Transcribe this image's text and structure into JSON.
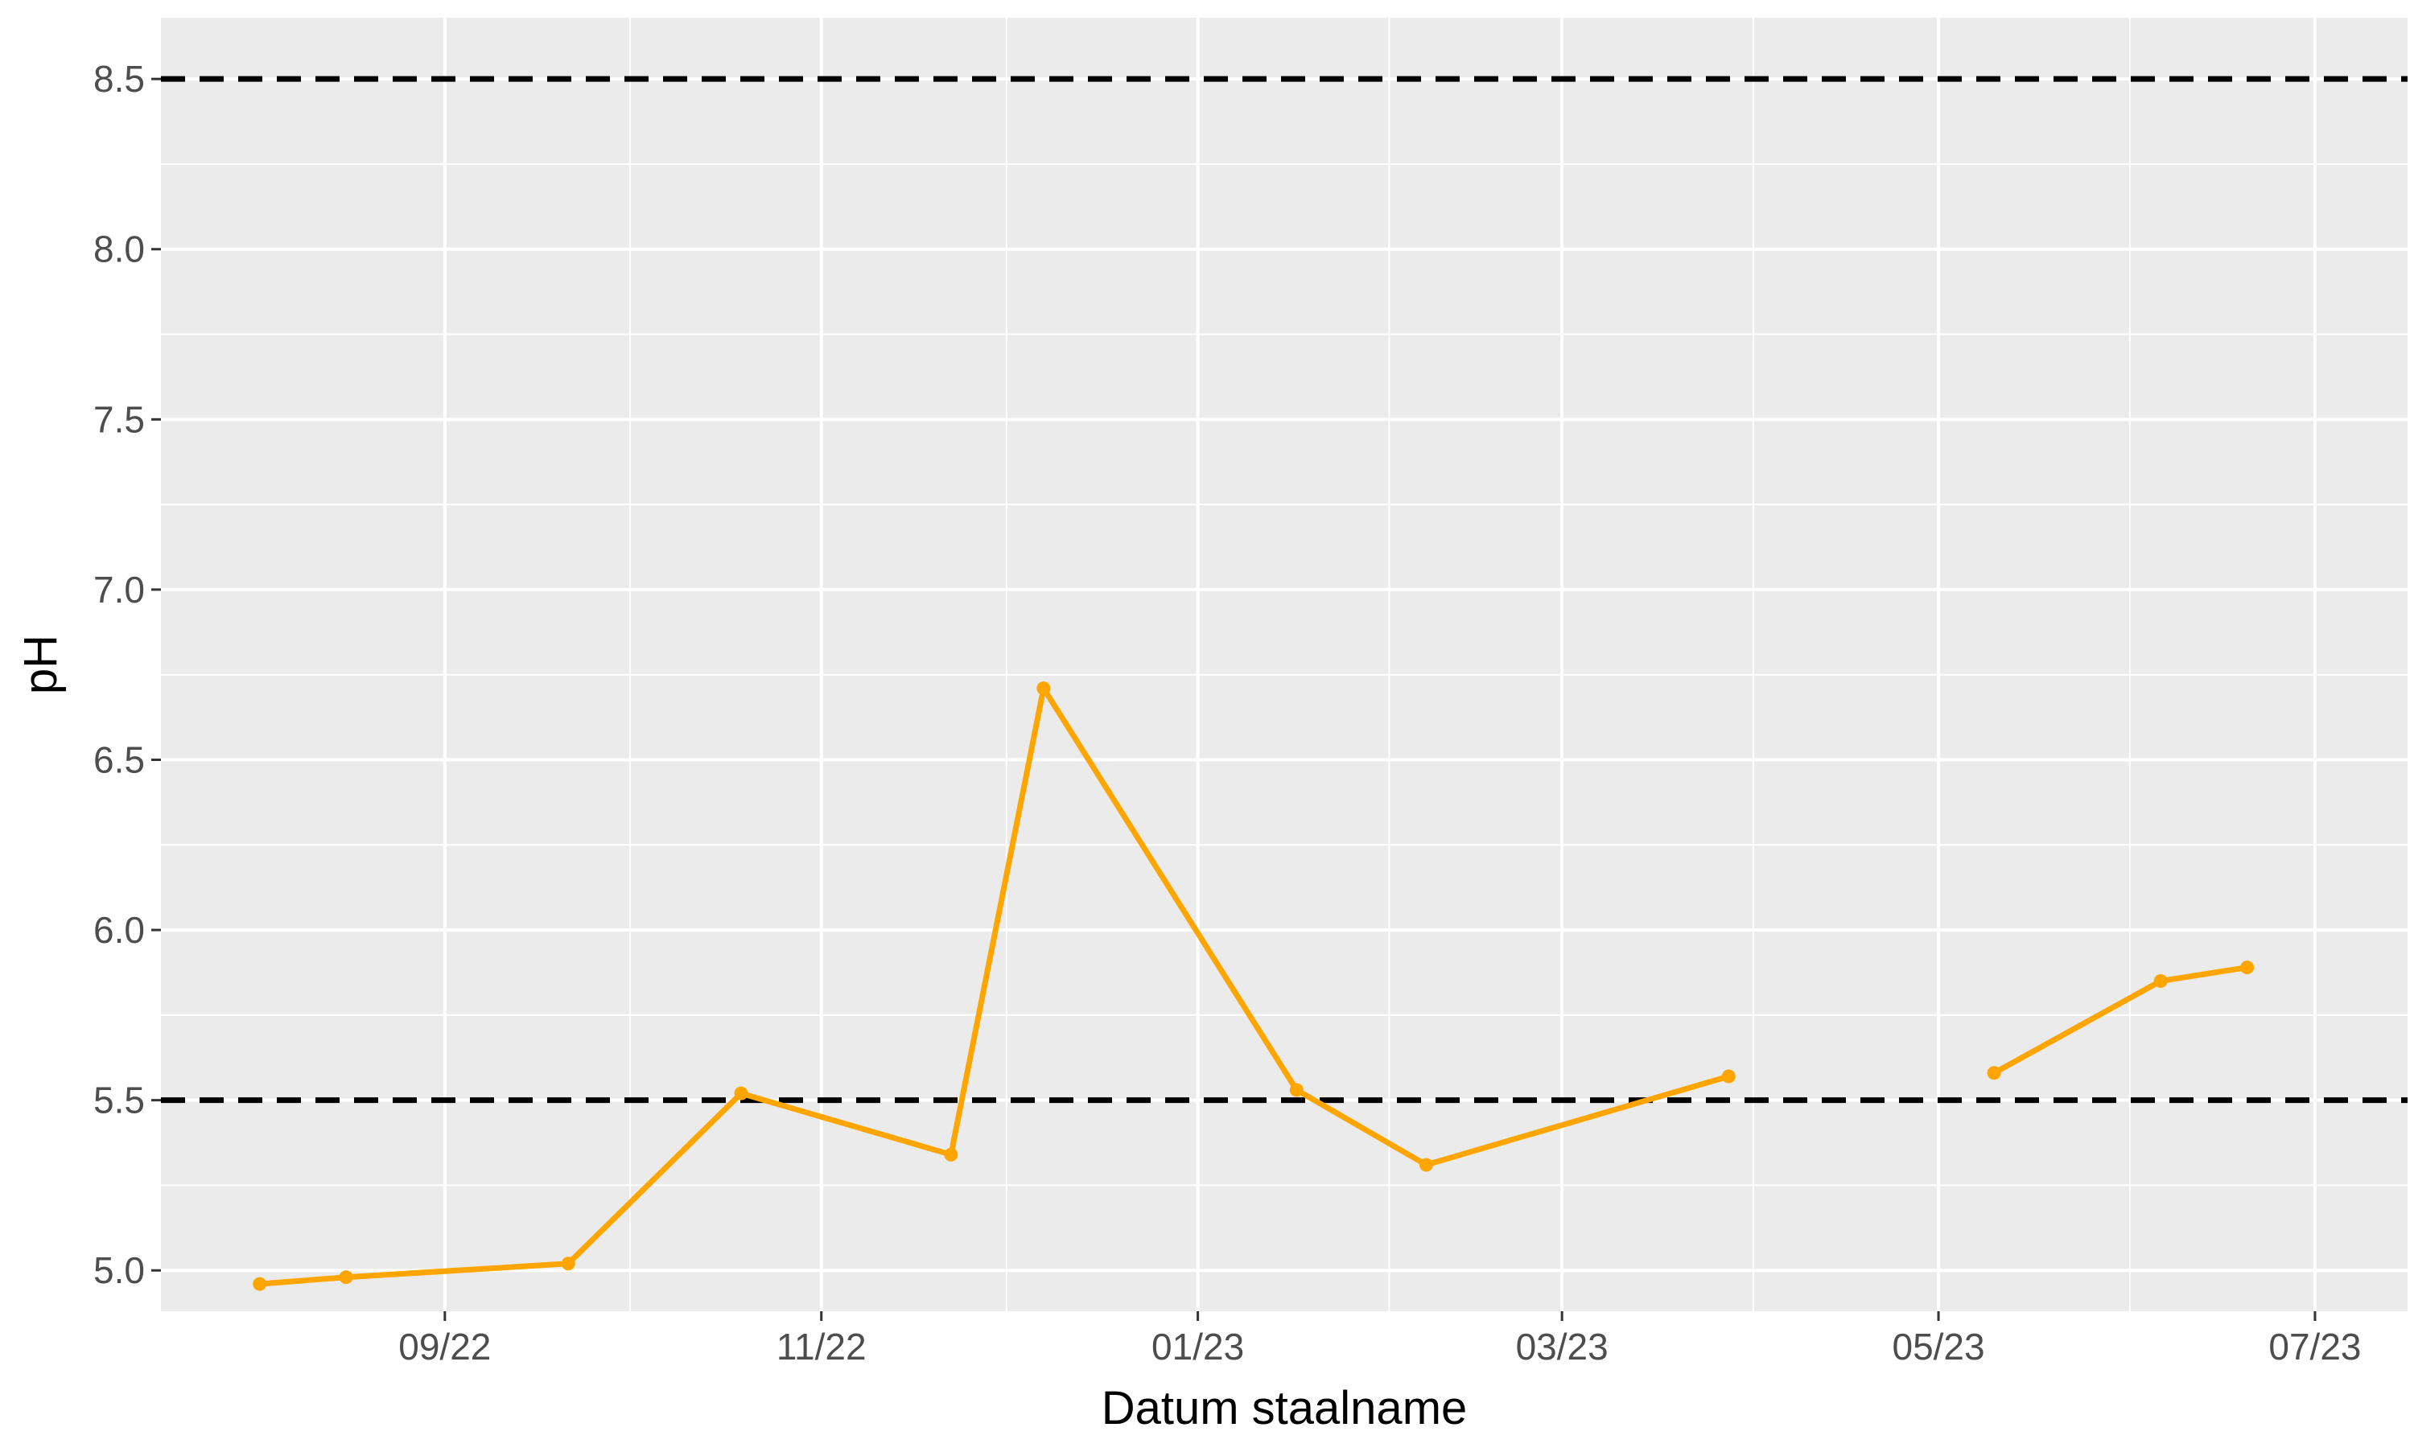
{
  "chart_data": {
    "type": "line",
    "xlabel": "Datum staalname",
    "ylabel": "pH",
    "x_axis_kind": "date",
    "xlim": [
      "2022-07-17",
      "2023-07-16"
    ],
    "ylim": [
      4.88,
      8.68
    ],
    "x_ticks": [
      {
        "date": "2022-09-01",
        "label": "09/22"
      },
      {
        "date": "2022-11-01",
        "label": "11/22"
      },
      {
        "date": "2023-01-01",
        "label": "01/23"
      },
      {
        "date": "2023-03-01",
        "label": "03/23"
      },
      {
        "date": "2023-05-01",
        "label": "05/23"
      },
      {
        "date": "2023-07-01",
        "label": "07/23"
      }
    ],
    "x_minor_ticks": [
      "2022-10-01",
      "2022-12-01",
      "2023-02-01",
      "2023-04-01",
      "2023-06-01"
    ],
    "y_ticks": [
      5.0,
      5.5,
      6.0,
      6.5,
      7.0,
      7.5,
      8.0,
      8.5
    ],
    "y_tick_labels": [
      "5.0",
      "5.5",
      "6.0",
      "6.5",
      "7.0",
      "7.5",
      "8.0",
      "8.5"
    ],
    "y_minor_ticks": [
      5.25,
      5.75,
      6.25,
      6.75,
      7.25,
      7.75,
      8.25
    ],
    "grid": true,
    "background_color": "#ebebeb",
    "series_color": "#ffa500",
    "reference_lines": [
      {
        "y": 5.5,
        "style": "dashed",
        "color": "#000000"
      },
      {
        "y": 8.5,
        "style": "dashed",
        "color": "#000000"
      }
    ],
    "series": [
      {
        "segments": [
          [
            {
              "x": "2022-08-02",
              "y": 4.96
            },
            {
              "x": "2022-08-16",
              "y": 4.98
            },
            {
              "x": "2022-09-21",
              "y": 5.02
            },
            {
              "x": "2022-10-19",
              "y": 5.52
            },
            {
              "x": "2022-11-22",
              "y": 5.34
            },
            {
              "x": "2022-12-07",
              "y": 6.71
            },
            {
              "x": "2023-01-17",
              "y": 5.53
            },
            {
              "x": "2023-02-07",
              "y": 5.31
            },
            {
              "x": "2023-03-28",
              "y": 5.57
            }
          ],
          [
            {
              "x": "2023-05-10",
              "y": 5.58
            },
            {
              "x": "2023-06-06",
              "y": 5.85
            },
            {
              "x": "2023-06-20",
              "y": 5.89
            }
          ]
        ]
      }
    ]
  }
}
